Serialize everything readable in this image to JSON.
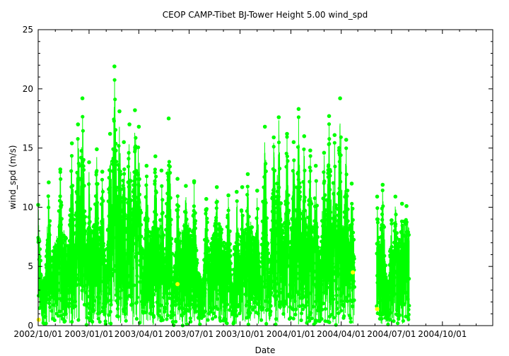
{
  "chart_data": {
    "type": "scatter",
    "title": "CEOP CAMP-Tibet BJ-Tower Height 5.00 wind_spd",
    "xlabel": "Date",
    "ylabel": "wind_spd (m/s)",
    "xlim": [
      "2002-10-01",
      "2004-12-31"
    ],
    "ylim": [
      0,
      25
    ],
    "x_ticks": [
      "2002/10/01",
      "2003/01/01",
      "2003/04/01",
      "2003/07/01",
      "2003/10/01",
      "2004/01/01",
      "2004/04/01",
      "2004/07/01",
      "2004/10/01"
    ],
    "y_ticks": [
      0,
      5,
      10,
      15,
      20,
      25
    ],
    "grid": false,
    "legend": "none",
    "colors": {
      "main": "#00ff00",
      "flagged": "#ffff00",
      "frame": "#000000"
    },
    "series": [
      {
        "color": "#00ff00",
        "data_gap": [
          "2004-04-25",
          "2004-06-04"
        ],
        "peaks": [
          {
            "x": "2002-10-01",
            "y": 10.2
          },
          {
            "x": "2002-10-20",
            "y": 12.1
          },
          {
            "x": "2002-11-10",
            "y": 13.2
          },
          {
            "x": "2002-12-01",
            "y": 15.4
          },
          {
            "x": "2002-12-12",
            "y": 17.0
          },
          {
            "x": "2002-12-20",
            "y": 19.2
          },
          {
            "x": "2003-01-01",
            "y": 13.8
          },
          {
            "x": "2003-01-15",
            "y": 14.9
          },
          {
            "x": "2003-01-25",
            "y": 13.0
          },
          {
            "x": "2003-02-08",
            "y": 16.2
          },
          {
            "x": "2003-02-16",
            "y": 21.9
          },
          {
            "x": "2003-02-25",
            "y": 18.1
          },
          {
            "x": "2003-03-05",
            "y": 15.5
          },
          {
            "x": "2003-03-15",
            "y": 17.0
          },
          {
            "x": "2003-03-25",
            "y": 18.2
          },
          {
            "x": "2003-04-01",
            "y": 16.8
          },
          {
            "x": "2003-04-15",
            "y": 13.5
          },
          {
            "x": "2003-05-01",
            "y": 14.3
          },
          {
            "x": "2003-05-12",
            "y": 13.1
          },
          {
            "x": "2003-05-25",
            "y": 17.5
          },
          {
            "x": "2003-06-10",
            "y": 12.4
          },
          {
            "x": "2003-06-25",
            "y": 11.8
          },
          {
            "x": "2003-07-10",
            "y": 12.2
          },
          {
            "x": "2003-08-01",
            "y": 10.7
          },
          {
            "x": "2003-08-20",
            "y": 11.7
          },
          {
            "x": "2003-09-10",
            "y": 11.0
          },
          {
            "x": "2003-09-25",
            "y": 11.3
          },
          {
            "x": "2003-10-05",
            "y": 11.7
          },
          {
            "x": "2003-10-15",
            "y": 12.8
          },
          {
            "x": "2003-11-01",
            "y": 11.4
          },
          {
            "x": "2003-11-15",
            "y": 16.8
          },
          {
            "x": "2003-12-01",
            "y": 15.9
          },
          {
            "x": "2003-12-10",
            "y": 17.6
          },
          {
            "x": "2003-12-25",
            "y": 16.2
          },
          {
            "x": "2004-01-06",
            "y": 15.5
          },
          {
            "x": "2004-01-15",
            "y": 18.3
          },
          {
            "x": "2004-01-25",
            "y": 16.0
          },
          {
            "x": "2004-02-05",
            "y": 14.8
          },
          {
            "x": "2004-02-15",
            "y": 13.5
          },
          {
            "x": "2004-03-01",
            "y": 14.6
          },
          {
            "x": "2004-03-10",
            "y": 17.7
          },
          {
            "x": "2004-03-20",
            "y": 16.1
          },
          {
            "x": "2004-03-30",
            "y": 19.2
          },
          {
            "x": "2004-04-10",
            "y": 15.7
          },
          {
            "x": "2004-04-20",
            "y": 12.0
          },
          {
            "x": "2004-06-05",
            "y": 10.9
          },
          {
            "x": "2004-06-15",
            "y": 11.9
          },
          {
            "x": "2004-07-01",
            "y": 8.9
          },
          {
            "x": "2004-07-08",
            "y": 10.9
          },
          {
            "x": "2004-07-20",
            "y": 10.3
          },
          {
            "x": "2004-07-28",
            "y": 10.1
          }
        ]
      },
      {
        "color": "#ffff00",
        "points": [
          {
            "x": "2002-10-02",
            "y": 0.5
          },
          {
            "x": "2003-06-10",
            "y": 3.5
          },
          {
            "x": "2004-04-22",
            "y": 4.5
          },
          {
            "x": "2004-06-05",
            "y": 1.4
          }
        ]
      }
    ]
  }
}
